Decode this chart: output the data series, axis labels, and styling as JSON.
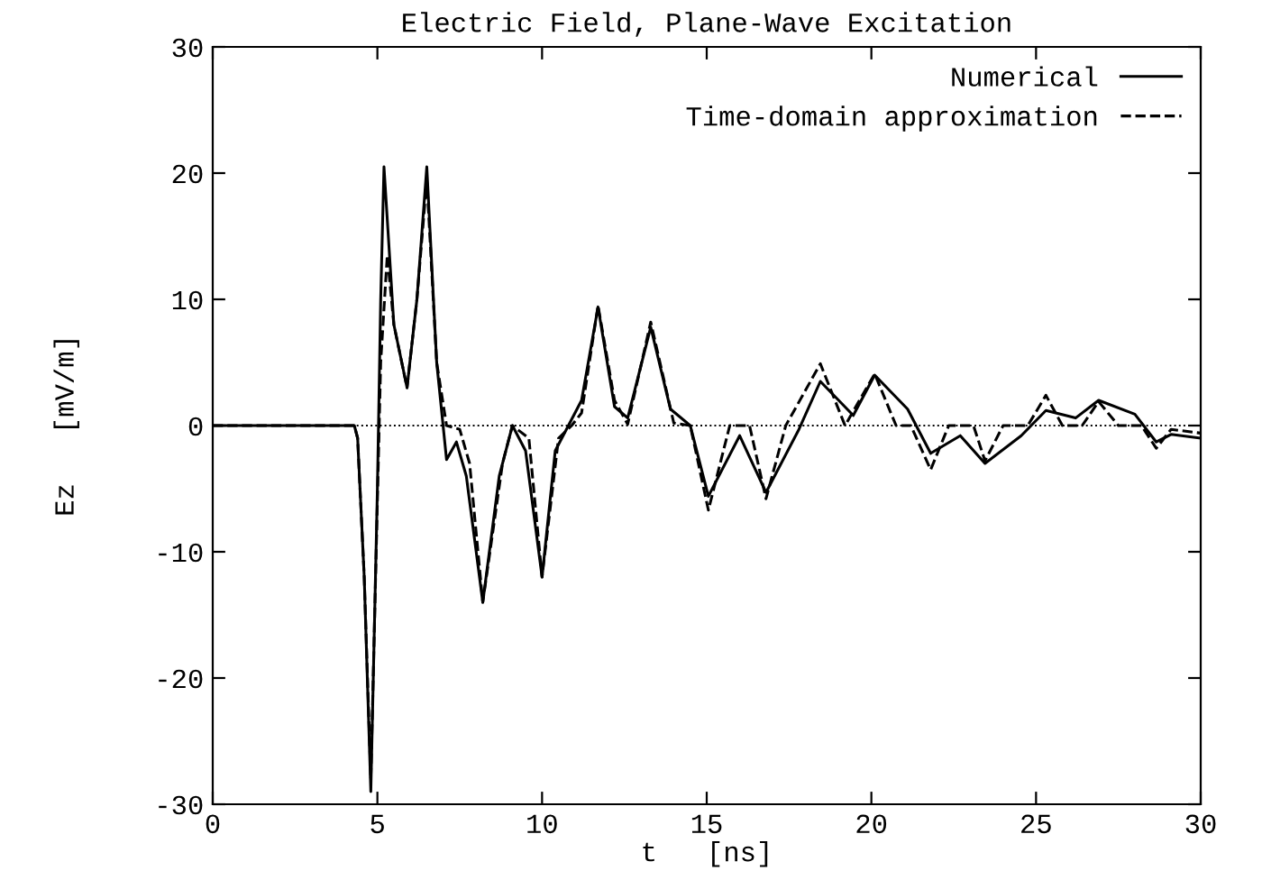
{
  "chart_data": {
    "type": "line",
    "title": "Electric Field, Plane-Wave Excitation",
    "xlabel": "t   [ns]",
    "ylabel": "Ez   [mV/m]",
    "xlim": [
      0,
      30
    ],
    "ylim": [
      -30,
      30
    ],
    "xticks": [
      0,
      5,
      10,
      15,
      20,
      25,
      30
    ],
    "yticks": [
      -30,
      -20,
      -10,
      0,
      10,
      20,
      30
    ],
    "grid": false,
    "legend": "top right",
    "marker": "none",
    "ref_lines": [
      {
        "axis": "y",
        "value": 0,
        "color": "#000000",
        "line_style": "dotted"
      }
    ],
    "series": [
      {
        "name": "Numerical",
        "color": "#000000",
        "line_style": "solid",
        "x": [
          0,
          4.3,
          4.4,
          4.6,
          4.8,
          5.0,
          5.1,
          5.2,
          5.5,
          5.9,
          6.2,
          6.5,
          6.8,
          7.1,
          7.4,
          7.7,
          8.2,
          8.7,
          9.1,
          9.5,
          10.0,
          10.4,
          10.8,
          11.2,
          11.7,
          12.2,
          12.6,
          13.3,
          13.9,
          14.5,
          15.05,
          16.0,
          16.8,
          17.8,
          18.45,
          19.45,
          20.1,
          21.1,
          21.8,
          22.7,
          23.45,
          24.55,
          25.3,
          26.2,
          26.9,
          28.0,
          28.65,
          29.1,
          30
        ],
        "values": [
          0,
          0,
          -1,
          -12,
          -29,
          -5,
          10,
          20.5,
          8,
          3,
          10,
          20.5,
          5,
          -2.7,
          -1.3,
          -4,
          -14,
          -4,
          0,
          -2,
          -12,
          -2,
          0,
          2,
          9.4,
          1.5,
          0.6,
          7.8,
          1.3,
          0,
          -5.6,
          -0.8,
          -5.3,
          -0.3,
          3.5,
          0.8,
          4,
          1.3,
          -2.2,
          -0.8,
          -3,
          -0.8,
          1.2,
          0.6,
          2,
          0.9,
          -1.3,
          -0.7,
          -1
        ]
      },
      {
        "name": "Time-domain approximation",
        "color": "#000000",
        "line_style": "dashed",
        "x": [
          0,
          4.3,
          4.4,
          4.6,
          4.8,
          5.0,
          5.1,
          5.3,
          5.5,
          5.9,
          6.2,
          6.5,
          6.8,
          7.1,
          7.5,
          7.8,
          8.2,
          8.8,
          9.1,
          9.6,
          10.0,
          10.5,
          10.9,
          11.2,
          11.7,
          12.2,
          12.6,
          13.3,
          14.0,
          14.5,
          15.05,
          15.7,
          16.3,
          16.8,
          17.4,
          18.45,
          19.2,
          20.1,
          20.75,
          21.2,
          21.8,
          22.35,
          23.1,
          23.45,
          24.0,
          24.75,
          25.3,
          25.8,
          26.4,
          26.9,
          27.5,
          28.2,
          28.65,
          29.1,
          30
        ],
        "values": [
          0,
          0,
          -1,
          -12,
          -28,
          -6,
          5,
          13.5,
          8,
          3,
          10,
          19.5,
          5,
          0,
          -0.3,
          -3,
          -14,
          -3,
          0,
          -1,
          -12,
          -1,
          0,
          1,
          9.5,
          2,
          0.1,
          8.2,
          0.2,
          0,
          -6.7,
          0,
          0,
          -5.8,
          0,
          4.9,
          0,
          4.1,
          0,
          0,
          -3.5,
          0,
          0,
          -2.8,
          0,
          0,
          2.4,
          0,
          0,
          1.9,
          0,
          0,
          -1.8,
          -0.3,
          -0.6
        ]
      }
    ]
  }
}
